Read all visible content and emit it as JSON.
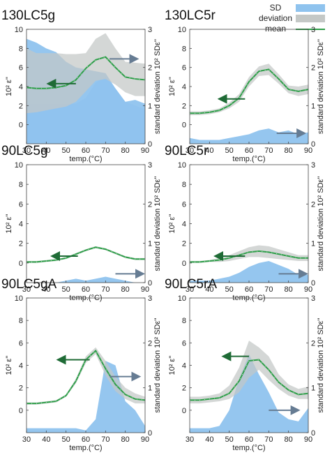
{
  "legend": {
    "entries": [
      {
        "label": "SD",
        "color": "#8fc3ee"
      },
      {
        "label": "deviation",
        "color": "#c4c8c6"
      },
      {
        "label": "mean",
        "color": "#2e9e49"
      }
    ]
  },
  "colors": {
    "sd_fill": "#8fc3ee",
    "deviation_fill": "#c4c8c6",
    "mean_line": "#2e9e49",
    "left_arrow": "#1f6b36",
    "right_arrow": "#667c93"
  },
  "chart_data": [
    {
      "type": "area",
      "title": "130LC5g",
      "xlabel": "temp.(°C)",
      "ylabel_left": "10² ε''",
      "ylabel_right": "standard deviation 10² SDε''",
      "x": [
        30,
        35,
        40,
        45,
        50,
        55,
        60,
        65,
        70,
        75,
        80,
        85,
        90
      ],
      "xlim": [
        30,
        90
      ],
      "ylim_left": [
        -2,
        10
      ],
      "ylim_right": [
        0,
        3
      ],
      "xticks": [
        30,
        40,
        50,
        60,
        70,
        80,
        90
      ],
      "yticks_left": [
        0,
        2,
        4,
        6,
        8,
        10
      ],
      "yticks_right": [
        0,
        1,
        2,
        3
      ],
      "mean": [
        3.9,
        3.8,
        3.8,
        3.9,
        4.1,
        4.7,
        5.9,
        6.8,
        7.1,
        6.0,
        5.0,
        4.8,
        4.7
      ],
      "band_upper": [
        8.0,
        7.5,
        7.5,
        7.5,
        7.4,
        7.4,
        7.5,
        9.0,
        9.6,
        8.0,
        6.6,
        6.5,
        6.4
      ],
      "band_lower": [
        1.2,
        1.3,
        1.5,
        1.7,
        1.9,
        2.4,
        3.5,
        4.6,
        4.8,
        4.2,
        3.4,
        3.0,
        3.0
      ],
      "sd": [
        2.75,
        2.65,
        2.5,
        2.4,
        2.15,
        2.0,
        1.95,
        1.9,
        1.85,
        1.45,
        1.1,
        1.15,
        1.05
      ],
      "sd2": [
        1.05,
        1.05,
        1.05,
        1.05,
        1.05,
        1.05,
        1.2,
        1.6,
        1.75,
        1.45,
        1.1,
        1.0,
        0.9
      ],
      "arrow_left": {
        "x1": 55,
        "x2": 41,
        "y": 4.3
      },
      "arrow_right": {
        "x1": 72,
        "x2": 86,
        "y": 6.9
      }
    },
    {
      "type": "area",
      "title": "130LC5r",
      "xlabel": "temp.(°C)",
      "ylabel_left": "10² ε''",
      "ylabel_right": "standard deviation 10² SDε''",
      "x": [
        30,
        35,
        40,
        45,
        50,
        55,
        60,
        65,
        70,
        75,
        80,
        85,
        90
      ],
      "xlim": [
        30,
        90
      ],
      "ylim_left": [
        -2,
        10
      ],
      "ylim_right": [
        0,
        3
      ],
      "xticks": [
        30,
        40,
        50,
        60,
        70,
        80,
        90
      ],
      "yticks_left": [
        0,
        2,
        4,
        6,
        8,
        10
      ],
      "yticks_right": [
        0,
        1,
        2,
        3
      ],
      "mean": [
        1.2,
        1.2,
        1.3,
        1.5,
        2.0,
        2.8,
        4.5,
        5.6,
        5.8,
        4.8,
        3.7,
        3.5,
        3.7
      ],
      "band_upper": [
        1.4,
        1.4,
        1.5,
        1.7,
        2.3,
        3.2,
        5.0,
        6.1,
        6.4,
        5.3,
        4.1,
        4.0,
        4.2
      ],
      "band_lower": [
        1.0,
        1.0,
        1.1,
        1.3,
        1.7,
        2.4,
        4.0,
        5.1,
        5.2,
        4.3,
        3.3,
        3.0,
        3.2
      ],
      "sd": [
        0.15,
        0.1,
        0.1,
        0.1,
        0.15,
        0.2,
        0.25,
        0.35,
        0.4,
        0.3,
        0.35,
        0.25,
        0.3
      ],
      "arrow_left": {
        "x1": 58,
        "x2": 45,
        "y": 2.7
      },
      "arrow_right": {
        "x1": 74,
        "x2": 88,
        "y": -0.9
      }
    },
    {
      "type": "area",
      "title": "90LC5g",
      "xlabel": "temp.(°C)",
      "ylabel_left": "10² ε''",
      "ylabel_right": "standard deviation 10² SDε''",
      "x": [
        30,
        35,
        40,
        45,
        50,
        55,
        60,
        65,
        70,
        75,
        80,
        85,
        90
      ],
      "xlim": [
        30,
        90
      ],
      "ylim_left": [
        -2,
        10
      ],
      "ylim_right": [
        0,
        3
      ],
      "xticks": [
        30,
        40,
        50,
        60,
        70,
        80,
        90
      ],
      "yticks_left": [
        0,
        2,
        4,
        6,
        8,
        10
      ],
      "yticks_right": [
        0,
        1,
        2,
        3
      ],
      "mean": [
        0.1,
        0.1,
        0.2,
        0.3,
        0.5,
        0.9,
        1.3,
        1.6,
        1.4,
        1.0,
        0.6,
        0.4,
        0.4
      ],
      "band_upper": [
        0.2,
        0.2,
        0.3,
        0.4,
        0.6,
        1.0,
        1.4,
        1.7,
        1.5,
        1.1,
        0.7,
        0.5,
        0.5
      ],
      "band_lower": [
        0.0,
        0.0,
        0.1,
        0.2,
        0.4,
        0.8,
        1.2,
        1.5,
        1.3,
        0.9,
        0.5,
        0.3,
        0.3
      ],
      "sd": [
        0.0,
        0.0,
        0.0,
        0.0,
        0.05,
        0.1,
        0.05,
        0.1,
        0.15,
        0.1,
        0.05,
        0.0,
        0.0
      ],
      "arrow_left": {
        "x1": 56,
        "x2": 43,
        "y": 0.7
      },
      "arrow_right": {
        "x1": 75,
        "x2": 89,
        "y": -1.1
      }
    },
    {
      "type": "area",
      "title": "90LC5r",
      "xlabel": "temp.(°C)",
      "ylabel_left": "10² ε''",
      "ylabel_right": "standard deviation 10² SDε''",
      "x": [
        30,
        35,
        40,
        45,
        50,
        55,
        60,
        65,
        70,
        75,
        80,
        85,
        90
      ],
      "xlim": [
        30,
        90
      ],
      "ylim_left": [
        -2,
        10
      ],
      "ylim_right": [
        0,
        3
      ],
      "xticks": [
        30,
        40,
        50,
        60,
        70,
        80,
        90
      ],
      "yticks_left": [
        0,
        2,
        4,
        6,
        8,
        10
      ],
      "yticks_right": [
        0,
        1,
        2,
        3
      ],
      "mean": [
        0.1,
        0.1,
        0.2,
        0.3,
        0.5,
        0.8,
        1.1,
        1.2,
        1.1,
        0.9,
        0.7,
        0.5,
        0.5
      ],
      "band_upper": [
        0.2,
        0.2,
        0.3,
        0.5,
        0.8,
        1.2,
        1.6,
        1.8,
        1.7,
        1.4,
        1.1,
        0.8,
        0.8
      ],
      "band_lower": [
        0.0,
        0.0,
        0.1,
        0.1,
        0.2,
        0.4,
        0.6,
        0.6,
        0.5,
        0.4,
        0.3,
        0.2,
        0.2
      ],
      "sd": [
        0.05,
        0.05,
        0.05,
        0.1,
        0.15,
        0.25,
        0.4,
        0.5,
        0.55,
        0.45,
        0.35,
        0.2,
        0.2
      ],
      "arrow_left": {
        "x1": 58,
        "x2": 43,
        "y": 0.7
      },
      "arrow_right": {
        "x1": 75,
        "x2": 89,
        "y": -1.1
      }
    },
    {
      "type": "area",
      "title": "90LC5gA",
      "xlabel": "temp.(°C)",
      "ylabel_left": "10² ε''",
      "ylabel_right": "standard deviation 10² SDε''",
      "x": [
        30,
        35,
        40,
        45,
        50,
        55,
        60,
        65,
        70,
        75,
        80,
        85,
        90
      ],
      "xlim": [
        30,
        90
      ],
      "ylim_left": [
        -2,
        10
      ],
      "ylim_right": [
        0,
        3
      ],
      "xticks": [
        30,
        40,
        50,
        60,
        70,
        80,
        90
      ],
      "yticks_left": [
        0,
        2,
        4,
        6,
        8,
        10
      ],
      "yticks_right": [
        0,
        1,
        2,
        3
      ],
      "mean": [
        0.6,
        0.6,
        0.7,
        0.8,
        1.3,
        2.6,
        4.5,
        5.3,
        3.7,
        2.3,
        1.4,
        1.0,
        0.9
      ],
      "band_upper": [
        0.7,
        0.7,
        0.8,
        0.9,
        1.4,
        2.8,
        4.8,
        5.6,
        4.4,
        3.0,
        2.0,
        1.5,
        1.2
      ],
      "band_lower": [
        0.5,
        0.5,
        0.6,
        0.7,
        1.2,
        2.4,
        4.2,
        5.0,
        3.1,
        1.7,
        1.0,
        0.6,
        0.6
      ],
      "sd": [
        0.1,
        0.1,
        0.1,
        0.1,
        0.1,
        0.1,
        0.05,
        0.3,
        1.6,
        1.5,
        0.7,
        0.5,
        0.15
      ],
      "arrow_left": {
        "x1": 62,
        "x2": 46,
        "y": 4.5
      },
      "arrow_right": {
        "x1": 72,
        "x2": 87,
        "y": 3.0
      }
    },
    {
      "type": "area",
      "title": "90LC5rA",
      "xlabel": "temp.(°C)",
      "ylabel_left": "10² ε''",
      "ylabel_right": "standard deviation 10² SDε''",
      "x": [
        30,
        35,
        40,
        45,
        50,
        55,
        60,
        65,
        70,
        75,
        80,
        85,
        90
      ],
      "xlim": [
        30,
        90
      ],
      "ylim_left": [
        -2,
        10
      ],
      "ylim_right": [
        0,
        3
      ],
      "xticks": [
        30,
        40,
        50,
        60,
        70,
        80,
        90
      ],
      "yticks_left": [
        0,
        2,
        4,
        6,
        8,
        10
      ],
      "yticks_right": [
        0,
        1,
        2,
        3
      ],
      "mean": [
        0.9,
        0.9,
        1.0,
        1.1,
        1.5,
        2.6,
        4.4,
        4.5,
        3.6,
        2.5,
        1.8,
        1.4,
        1.5
      ],
      "band_upper": [
        1.2,
        1.2,
        1.3,
        1.5,
        2.2,
        3.8,
        6.2,
        5.6,
        4.8,
        3.2,
        2.3,
        1.9,
        2.1
      ],
      "band_lower": [
        0.6,
        0.6,
        0.7,
        0.8,
        1.0,
        1.6,
        2.9,
        3.6,
        2.7,
        1.9,
        1.3,
        1.0,
        1.0
      ],
      "sd": [
        0.1,
        0.1,
        0.1,
        0.15,
        0.5,
        1.2,
        1.75,
        1.3,
        0.9,
        0.45,
        0.3,
        0.25,
        0.55
      ],
      "arrow_left": {
        "x1": 60,
        "x2": 47,
        "y": 4.8
      },
      "arrow_right": {
        "x1": 70,
        "x2": 85,
        "y": 0.0
      }
    }
  ]
}
